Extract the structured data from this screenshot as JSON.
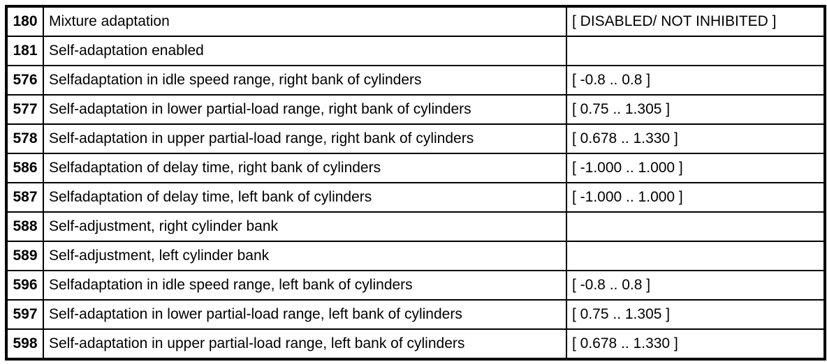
{
  "table": {
    "rows": [
      {
        "id": "180",
        "description": "Mixture adaptation",
        "value": "[ DISABLED/ NOT INHIBITED ]"
      },
      {
        "id": "181",
        "description": "Self-adaptation enabled",
        "value": ""
      },
      {
        "id": "576",
        "description": "Selfadaptation in idle speed range, right bank of cylinders",
        "value": "[ -0.8 .. 0.8 ]"
      },
      {
        "id": "577",
        "description": "Self-adaptation in lower partial-load range, right bank of cylinders",
        "value": "[ 0.75 .. 1.305 ]"
      },
      {
        "id": "578",
        "description": "Self-adaptation in upper partial-load range, right bank of cylinders",
        "value": "[ 0.678 .. 1.330 ]"
      },
      {
        "id": "586",
        "description": "Selfadaptation of delay time, right bank of cylinders",
        "value": "[ -1.000 .. 1.000 ]"
      },
      {
        "id": "587",
        "description": "Selfadaptation of delay time, left bank of cylinders",
        "value": "[ -1.000 .. 1.000 ]"
      },
      {
        "id": "588",
        "description": "Self-adjustment, right cylinder bank",
        "value": ""
      },
      {
        "id": "589",
        "description": "Self-adjustment, left cylinder bank",
        "value": ""
      },
      {
        "id": "596",
        "description": "Selfadaptation in idle speed range, left bank of cylinders",
        "value": "[ -0.8 .. 0.8 ]"
      },
      {
        "id": "597",
        "description": "Self-adaptation in lower partial-load range, left bank of cylinders",
        "value": "[ 0.75 .. 1.305 ]"
      },
      {
        "id": "598",
        "description": "Self-adaptation in upper partial-load range, left bank of cylinders",
        "value": "[ 0.678 .. 1.330 ]"
      }
    ]
  }
}
